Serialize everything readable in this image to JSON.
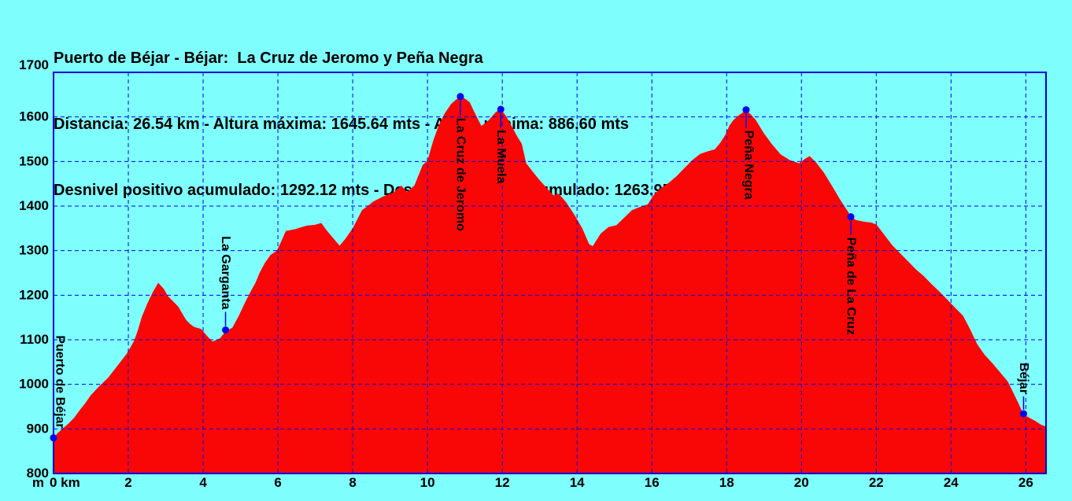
{
  "header": {
    "line1": "Puerto de Béjar - Béjar:  La Cruz de Jeromo y Peña Negra",
    "line2": "Distancia: 26.54 km - Altura máxima: 1645.64 mts - Altura mínima: 886.60 mts",
    "line3": "Desnivel positivo acumulado: 1292.12 mts - Desnivel negativo acumulado: 1263.95 mts"
  },
  "chart_data": {
    "type": "area",
    "title": "Puerto de Béjar - Béjar:  La Cruz de Jeromo y Peña Negra",
    "xlabel": "km",
    "ylabel": "m",
    "x_unit_label": "m",
    "origin_label": "0 km",
    "xlim": [
      0,
      26.54
    ],
    "ylim": [
      800,
      1700
    ],
    "x_ticks": [
      2,
      4,
      6,
      8,
      10,
      12,
      14,
      16,
      18,
      20,
      22,
      24,
      26
    ],
    "y_ticks": [
      800,
      900,
      1000,
      1100,
      1200,
      1300,
      1400,
      1500,
      1600,
      1700
    ],
    "grid": "dashed",
    "legend": "none",
    "colors": {
      "background": "#7FFEFE",
      "area_fill": "#F90606",
      "grid_line": "#0000EE",
      "axis_line": "#0000DD",
      "marker": "#0000EE",
      "text": "#000000"
    },
    "stats": {
      "distance_km": 26.54,
      "max_altitude_m": 1645.64,
      "min_altitude_m": 886.6,
      "ascent_m": 1292.12,
      "descent_m": 1263.95
    },
    "waypoints": [
      {
        "name": "Puerto de Béjar",
        "km": 0.0,
        "elev": 880,
        "label_side": "above",
        "gap": 12,
        "connector": false,
        "label_dx": 8
      },
      {
        "name": "La Garganta",
        "km": 4.6,
        "elev": 1122,
        "label_side": "above",
        "gap": 26,
        "connector": true,
        "label_dx": 0
      },
      {
        "name": "La Cruz de Jeromo",
        "km": 10.88,
        "elev": 1645.64,
        "label_side": "below",
        "gap": 27,
        "connector": true,
        "label_dx": 0
      },
      {
        "name": "La Muela",
        "km": 11.96,
        "elev": 1617,
        "label_side": "below",
        "gap": 26,
        "connector": true,
        "label_dx": 0
      },
      {
        "name": "Peña Negra",
        "km": 18.52,
        "elev": 1616,
        "label_side": "below",
        "gap": 26,
        "connector": true,
        "label_dx": 3
      },
      {
        "name": "Peña de La Cruz",
        "km": 21.32,
        "elev": 1376,
        "label_side": "below",
        "gap": 26,
        "connector": true,
        "label_dx": 0
      },
      {
        "name": "Béjar",
        "km": 25.94,
        "elev": 934,
        "label_side": "above",
        "gap": 25,
        "connector": true,
        "label_dx": 0
      }
    ],
    "profile": [
      [
        0,
        878
      ],
      [
        0.1,
        890
      ],
      [
        0.25,
        901
      ],
      [
        0.4,
        912
      ],
      [
        0.55,
        925
      ],
      [
        0.7,
        942
      ],
      [
        0.85,
        958
      ],
      [
        1.0,
        976
      ],
      [
        1.1,
        985
      ],
      [
        1.25,
        998
      ],
      [
        1.45,
        1014
      ],
      [
        1.6,
        1030
      ],
      [
        1.75,
        1046
      ],
      [
        1.95,
        1068
      ],
      [
        2.05,
        1082
      ],
      [
        2.15,
        1097
      ],
      [
        2.25,
        1120
      ],
      [
        2.36,
        1151
      ],
      [
        2.5,
        1180
      ],
      [
        2.65,
        1206
      ],
      [
        2.8,
        1228
      ],
      [
        2.95,
        1214
      ],
      [
        3.06,
        1198
      ],
      [
        3.2,
        1186
      ],
      [
        3.34,
        1174
      ],
      [
        3.45,
        1158
      ],
      [
        3.55,
        1144
      ],
      [
        3.66,
        1135
      ],
      [
        3.76,
        1129
      ],
      [
        3.95,
        1124
      ],
      [
        4.1,
        1109
      ],
      [
        4.25,
        1096
      ],
      [
        4.45,
        1103
      ],
      [
        4.6,
        1119
      ],
      [
        4.78,
        1127
      ],
      [
        4.95,
        1153
      ],
      [
        5.1,
        1180
      ],
      [
        5.25,
        1205
      ],
      [
        5.4,
        1228
      ],
      [
        5.52,
        1252
      ],
      [
        5.65,
        1272
      ],
      [
        5.8,
        1290
      ],
      [
        5.97,
        1300
      ],
      [
        6.07,
        1317
      ],
      [
        6.21,
        1344
      ],
      [
        6.45,
        1348
      ],
      [
        6.6,
        1352
      ],
      [
        6.78,
        1356
      ],
      [
        7.0,
        1358
      ],
      [
        7.16,
        1362
      ],
      [
        7.3,
        1346
      ],
      [
        7.5,
        1326
      ],
      [
        7.65,
        1311
      ],
      [
        7.8,
        1326
      ],
      [
        8.0,
        1350
      ],
      [
        8.25,
        1391
      ],
      [
        8.4,
        1400
      ],
      [
        8.55,
        1410
      ],
      [
        8.8,
        1421
      ],
      [
        9.1,
        1431
      ],
      [
        9.3,
        1446
      ],
      [
        9.45,
        1431
      ],
      [
        9.65,
        1446
      ],
      [
        9.87,
        1492
      ],
      [
        10.0,
        1502
      ],
      [
        10.15,
        1546
      ],
      [
        10.3,
        1581
      ],
      [
        10.46,
        1608
      ],
      [
        10.63,
        1629
      ],
      [
        10.75,
        1638
      ],
      [
        10.88,
        1645.64
      ],
      [
        11.0,
        1641
      ],
      [
        11.13,
        1633
      ],
      [
        11.27,
        1608
      ],
      [
        11.44,
        1580
      ],
      [
        11.62,
        1591
      ],
      [
        11.83,
        1611
      ],
      [
        11.96,
        1617
      ],
      [
        12.1,
        1602
      ],
      [
        12.18,
        1590
      ],
      [
        12.4,
        1556
      ],
      [
        12.52,
        1540
      ],
      [
        12.64,
        1496
      ],
      [
        12.88,
        1470
      ],
      [
        13.0,
        1458
      ],
      [
        13.16,
        1443
      ],
      [
        13.37,
        1424
      ],
      [
        13.51,
        1428
      ],
      [
        13.72,
        1407
      ],
      [
        13.93,
        1380
      ],
      [
        14.14,
        1350
      ],
      [
        14.32,
        1315
      ],
      [
        14.42,
        1310
      ],
      [
        14.63,
        1338
      ],
      [
        14.84,
        1353
      ],
      [
        15.05,
        1357
      ],
      [
        15.26,
        1374
      ],
      [
        15.47,
        1391
      ],
      [
        15.68,
        1398
      ],
      [
        15.89,
        1404
      ],
      [
        16.05,
        1425
      ],
      [
        16.24,
        1440
      ],
      [
        16.45,
        1452
      ],
      [
        16.66,
        1467
      ],
      [
        16.87,
        1485
      ],
      [
        17.08,
        1503
      ],
      [
        17.29,
        1517
      ],
      [
        17.5,
        1523
      ],
      [
        17.68,
        1527
      ],
      [
        17.82,
        1541
      ],
      [
        17.96,
        1559
      ],
      [
        18.07,
        1580
      ],
      [
        18.17,
        1592
      ],
      [
        18.31,
        1603
      ],
      [
        18.52,
        1615
      ],
      [
        18.65,
        1605
      ],
      [
        18.78,
        1593
      ],
      [
        18.99,
        1564
      ],
      [
        19.2,
        1540
      ],
      [
        19.44,
        1516
      ],
      [
        19.69,
        1503
      ],
      [
        19.94,
        1496
      ],
      [
        20.11,
        1507
      ],
      [
        20.22,
        1512
      ],
      [
        20.39,
        1498
      ],
      [
        20.6,
        1475
      ],
      [
        20.82,
        1445
      ],
      [
        21.03,
        1415
      ],
      [
        21.24,
        1388
      ],
      [
        21.32,
        1376
      ],
      [
        21.45,
        1369
      ],
      [
        21.66,
        1365
      ],
      [
        21.87,
        1363
      ],
      [
        22.01,
        1358
      ],
      [
        22.22,
        1335
      ],
      [
        22.43,
        1312
      ],
      [
        22.64,
        1294
      ],
      [
        22.85,
        1276
      ],
      [
        23.06,
        1258
      ],
      [
        23.27,
        1243
      ],
      [
        23.48,
        1225
      ],
      [
        23.69,
        1208
      ],
      [
        23.9,
        1190
      ],
      [
        24.11,
        1172
      ],
      [
        24.32,
        1154
      ],
      [
        24.5,
        1125
      ],
      [
        24.7,
        1090
      ],
      [
        24.9,
        1066
      ],
      [
        25.1,
        1048
      ],
      [
        25.31,
        1027
      ],
      [
        25.52,
        1006
      ],
      [
        25.66,
        982
      ],
      [
        25.8,
        958
      ],
      [
        25.94,
        932
      ],
      [
        26.1,
        925
      ],
      [
        26.25,
        918
      ],
      [
        26.4,
        910
      ],
      [
        26.54,
        905
      ]
    ]
  }
}
